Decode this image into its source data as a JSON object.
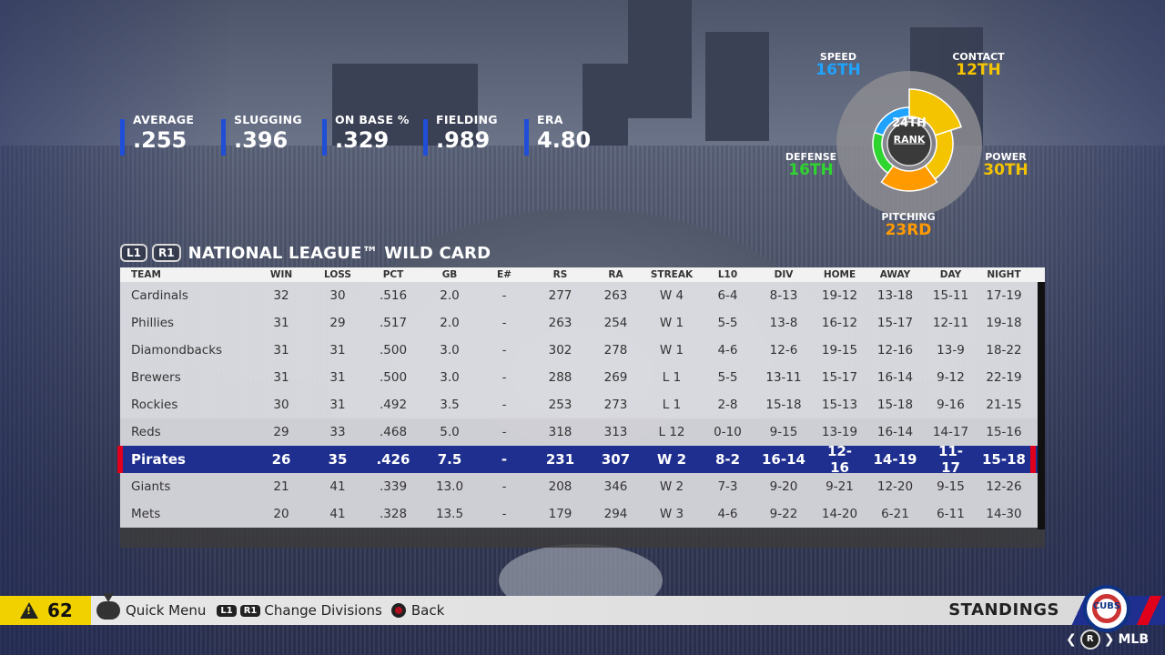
{
  "stats": [
    {
      "label": "AVERAGE",
      "value": ".255"
    },
    {
      "label": "SLUGGING",
      "value": ".396"
    },
    {
      "label": "ON BASE %",
      "value": ".329"
    },
    {
      "label": "FIELDING",
      "value": ".989"
    },
    {
      "label": "ERA",
      "value": "4.80"
    }
  ],
  "rank": {
    "center_value": "24TH",
    "center_label": "RANK",
    "speed": {
      "label": "SPEED",
      "value": "16TH",
      "color": "#1fa3ff"
    },
    "contact": {
      "label": "CONTACT",
      "value": "12TH",
      "color": "#f4c400"
    },
    "power": {
      "label": "POWER",
      "value": "30TH",
      "color": "#f4c400"
    },
    "pitching": {
      "label": "PITCHING",
      "value": "23RD",
      "color": "#ff9a00"
    },
    "defense": {
      "label": "DEFENSE",
      "value": "16TH",
      "color": "#2fd52f"
    }
  },
  "header": {
    "btn_l1": "L1",
    "btn_r1": "R1",
    "title": "NATIONAL LEAGUE™ WILD CARD"
  },
  "table": {
    "columns": [
      "TEAM",
      "WIN",
      "LOSS",
      "PCT",
      "GB",
      "E#",
      "RS",
      "RA",
      "STREAK",
      "L10",
      "DIV",
      "HOME",
      "AWAY",
      "DAY",
      "NIGHT"
    ],
    "rows": [
      [
        "Cardinals",
        "32",
        "30",
        ".516",
        "2.0",
        "-",
        "277",
        "263",
        "W 4",
        "6-4",
        "8-13",
        "19-12",
        "13-18",
        "15-11",
        "17-19"
      ],
      [
        "Phillies",
        "31",
        "29",
        ".517",
        "2.0",
        "-",
        "263",
        "254",
        "W 1",
        "5-5",
        "13-8",
        "16-12",
        "15-17",
        "12-11",
        "19-18"
      ],
      [
        "Diamondbacks",
        "31",
        "31",
        ".500",
        "3.0",
        "-",
        "302",
        "278",
        "W 1",
        "4-6",
        "12-6",
        "19-15",
        "12-16",
        "13-9",
        "18-22"
      ],
      [
        "Brewers",
        "31",
        "31",
        ".500",
        "3.0",
        "-",
        "288",
        "269",
        "L 1",
        "5-5",
        "13-11",
        "15-17",
        "16-14",
        "9-12",
        "22-19"
      ],
      [
        "Rockies",
        "30",
        "31",
        ".492",
        "3.5",
        "-",
        "253",
        "273",
        "L 1",
        "2-8",
        "15-18",
        "15-13",
        "15-18",
        "9-16",
        "21-15"
      ],
      [
        "Reds",
        "29",
        "33",
        ".468",
        "5.0",
        "-",
        "318",
        "313",
        "L 12",
        "0-10",
        "9-15",
        "13-19",
        "16-14",
        "14-17",
        "15-16"
      ],
      [
        "Pirates",
        "26",
        "35",
        ".426",
        "7.5",
        "-",
        "231",
        "307",
        "W 2",
        "8-2",
        "16-14",
        "12-16",
        "14-19",
        "11-17",
        "15-18"
      ],
      [
        "Giants",
        "21",
        "41",
        ".339",
        "13.0",
        "-",
        "208",
        "346",
        "W 2",
        "7-3",
        "9-20",
        "9-21",
        "12-20",
        "9-15",
        "12-26"
      ],
      [
        "Mets",
        "20",
        "41",
        ".328",
        "13.5",
        "-",
        "179",
        "294",
        "W 3",
        "4-6",
        "9-22",
        "14-20",
        "6-21",
        "6-11",
        "14-30"
      ]
    ],
    "highlight_row": 6
  },
  "bottom": {
    "alert_count": "62",
    "quick_menu": "Quick Menu",
    "btn_l1": "L1",
    "btn_r1": "R1",
    "change_divisions": "Change Divisions",
    "back": "Back",
    "screen_title": "STANDINGS",
    "team_logo_text": "CUBS",
    "nav_r": "R",
    "nav_mlb": "MLB"
  }
}
